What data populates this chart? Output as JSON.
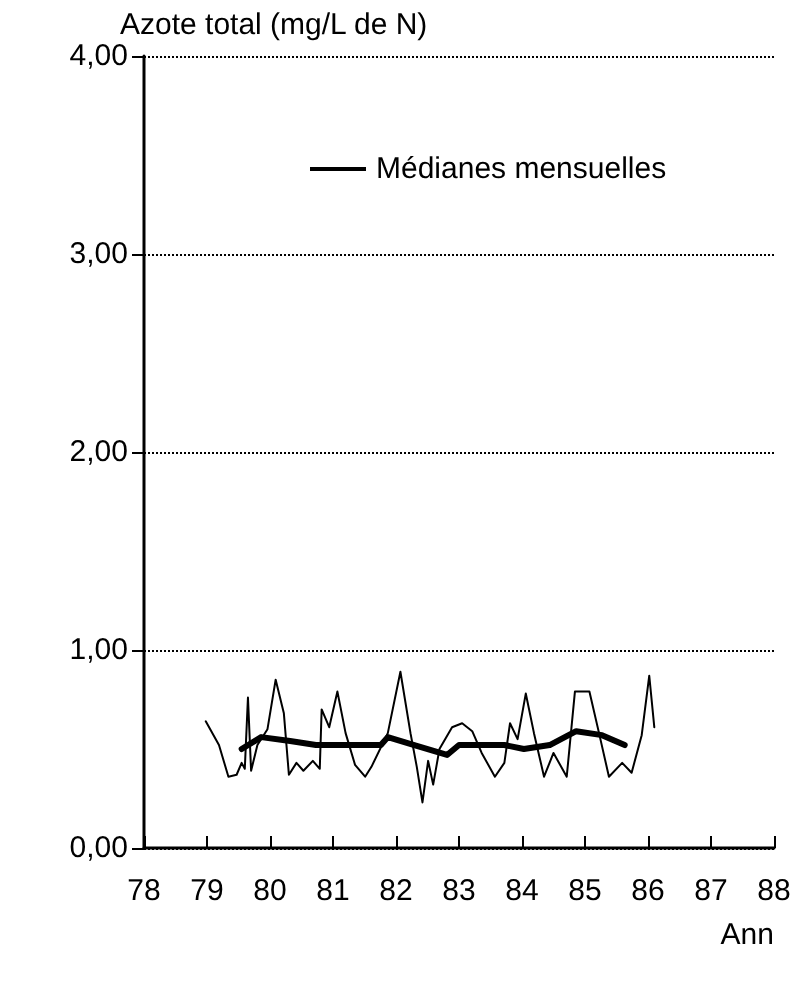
{
  "chart_data": {
    "type": "line",
    "ylabel": "Azote total (mg/L de N)",
    "xlabel": "Ann",
    "xlim": [
      78,
      88
    ],
    "xticks": [
      78,
      79,
      80,
      81,
      82,
      83,
      84,
      85,
      86,
      87,
      88
    ],
    "ylim": [
      0,
      4
    ],
    "yticks": [
      {
        "value": 0,
        "label": "0,00"
      },
      {
        "value": 1,
        "label": "1,00"
      },
      {
        "value": 2,
        "label": "2,00"
      },
      {
        "value": 3,
        "label": "3,00"
      },
      {
        "value": 4,
        "label": "4,00"
      }
    ],
    "grid": "y",
    "legend": "top left",
    "marker": "none",
    "line_style": "solid",
    "series": [
      {
        "name": "Médianes mensuelles",
        "color": "#000000",
        "x": [
          78.98,
          79.19,
          79.34,
          79.47,
          79.55,
          79.6,
          79.65,
          79.7,
          79.8,
          79.96,
          80.09,
          80.22,
          80.3,
          80.42,
          80.53,
          80.68,
          80.79,
          80.82,
          80.94,
          81.07,
          81.2,
          81.35,
          81.51,
          81.61,
          81.87,
          82.07,
          82.23,
          82.33,
          82.42,
          82.51,
          82.59,
          82.69,
          82.89,
          83.05,
          83.21,
          83.36,
          83.57,
          83.72,
          83.81,
          83.93,
          84.06,
          84.19,
          84.35,
          84.5,
          84.71,
          84.84,
          85.07,
          85.23,
          85.38,
          85.59,
          85.74,
          85.9,
          86.02,
          86.1
        ],
        "values": [
          0.64,
          0.52,
          0.36,
          0.37,
          0.43,
          0.4,
          0.76,
          0.39,
          0.52,
          0.6,
          0.85,
          0.68,
          0.37,
          0.43,
          0.39,
          0.44,
          0.4,
          0.7,
          0.61,
          0.79,
          0.58,
          0.42,
          0.36,
          0.41,
          0.58,
          0.89,
          0.58,
          0.41,
          0.23,
          0.44,
          0.32,
          0.5,
          0.61,
          0.63,
          0.59,
          0.48,
          0.36,
          0.43,
          0.63,
          0.55,
          0.78,
          0.58,
          0.36,
          0.48,
          0.36,
          0.79,
          0.79,
          0.57,
          0.36,
          0.43,
          0.38,
          0.57,
          0.87,
          0.61
        ]
      },
      {
        "color": "#000000",
        "x": [
          79.55,
          79.86,
          80.32,
          80.73,
          81.76,
          81.87,
          82.29,
          82.81,
          83.0,
          83.72,
          84.03,
          84.44,
          84.86,
          85.27,
          85.63
        ],
        "values": [
          0.5,
          0.56,
          0.54,
          0.52,
          0.52,
          0.56,
          0.52,
          0.47,
          0.52,
          0.52,
          0.5,
          0.52,
          0.59,
          0.57,
          0.52
        ]
      }
    ]
  }
}
